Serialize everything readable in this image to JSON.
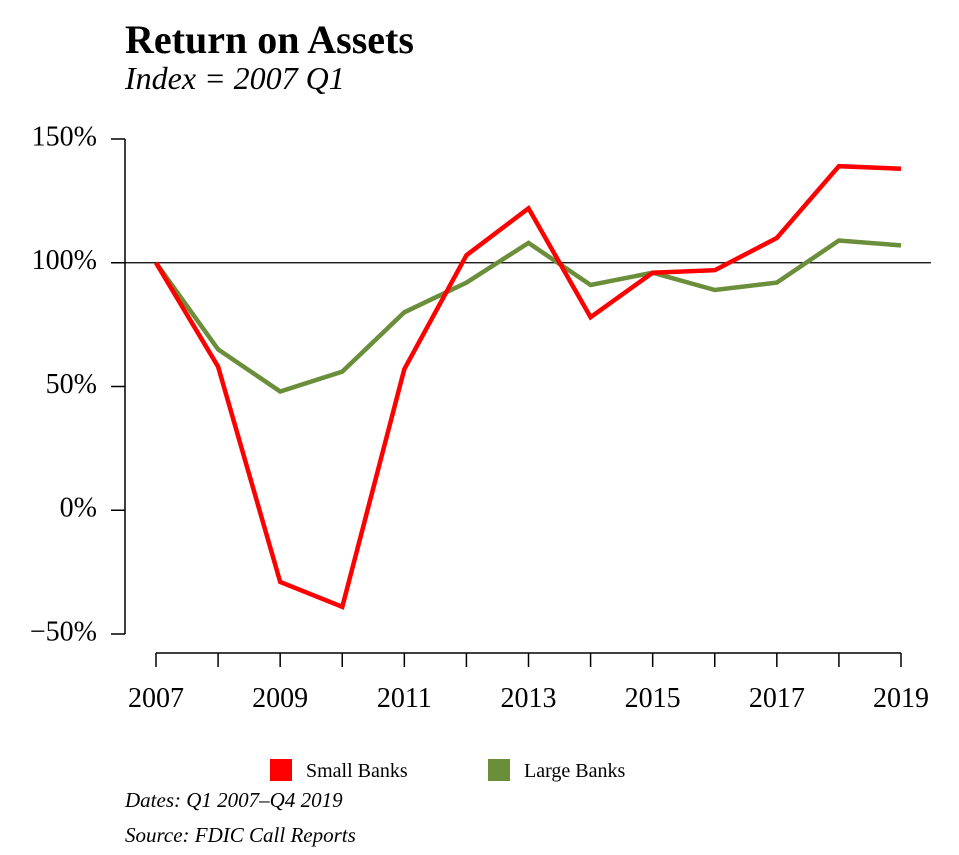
{
  "header": {
    "title": "Return on Assets",
    "subtitle": "Index = 2007 Q1"
  },
  "footer": {
    "dates": "Dates: Q1 2007–Q4 2019",
    "source": "Source: FDIC Call Reports"
  },
  "chart_data": {
    "type": "line",
    "title": "Return on Assets",
    "subtitle": "Index = 2007 Q1",
    "xlabel": "",
    "ylabel": "",
    "x": [
      2007,
      2008,
      2009,
      2010,
      2011,
      2012,
      2013,
      2014,
      2015,
      2016,
      2017,
      2018,
      2019
    ],
    "xlim": [
      2007,
      2019
    ],
    "ylim": [
      -50,
      150
    ],
    "x_ticks": [
      2007,
      2008,
      2009,
      2010,
      2011,
      2012,
      2013,
      2014,
      2015,
      2016,
      2017,
      2018,
      2019
    ],
    "x_tick_labels": [
      "2007",
      "2009",
      "2011",
      "2013",
      "2015",
      "2017",
      "2019"
    ],
    "x_tick_label_values": [
      2007,
      2009,
      2011,
      2013,
      2015,
      2017,
      2019
    ],
    "y_ticks": [
      150,
      100,
      50,
      0,
      -50
    ],
    "y_tick_labels": [
      "150%",
      "100%",
      "50%",
      "0%",
      "−50%"
    ],
    "reference_line": 100,
    "grid": false,
    "legend_position": "bottom",
    "series": [
      {
        "name": "Small Banks",
        "color": "#ff0000",
        "values": [
          100,
          58,
          -29,
          -39,
          57,
          103,
          122,
          78,
          96,
          97,
          110,
          139,
          138
        ]
      },
      {
        "name": "Large Banks",
        "color": "#6b8e3a",
        "values": [
          100,
          65,
          48,
          56,
          80,
          92,
          108,
          91,
          96,
          89,
          92,
          109,
          107
        ]
      }
    ]
  }
}
